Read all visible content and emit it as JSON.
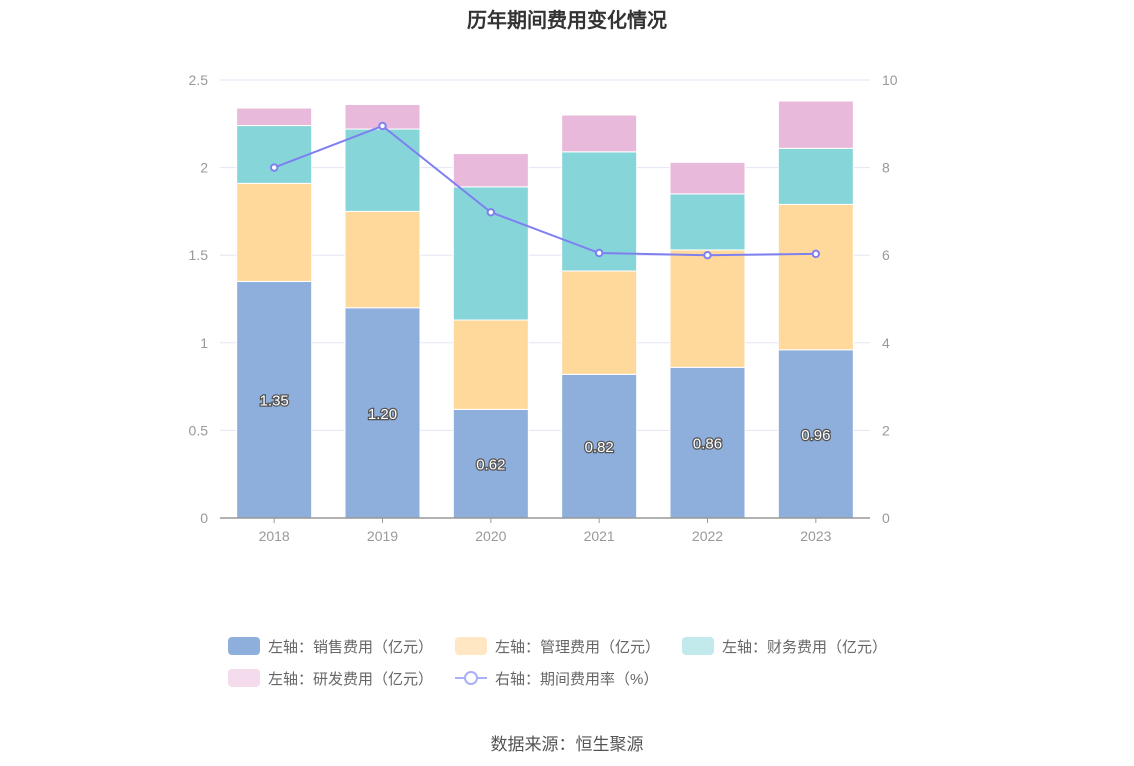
{
  "chart_data": {
    "type": "bar",
    "title": "历年期间费用变化情况",
    "categories": [
      "2018",
      "2019",
      "2020",
      "2021",
      "2022",
      "2023"
    ],
    "series": [
      {
        "name": "左轴：销售费用（亿元）",
        "values": [
          1.35,
          1.2,
          0.62,
          0.82,
          0.86,
          0.96
        ],
        "color": "#8eaedb",
        "labels": [
          "1.35",
          "1.20",
          "0.62",
          "0.82",
          "0.86",
          "0.96"
        ]
      },
      {
        "name": "左轴：管理费用（亿元）",
        "values": [
          0.56,
          0.55,
          0.51,
          0.59,
          0.67,
          0.83
        ],
        "color": "#ffd99c"
      },
      {
        "name": "左轴：财务费用（亿元）",
        "values": [
          0.33,
          0.47,
          0.76,
          0.68,
          0.32,
          0.32
        ],
        "color": "#86d5d9"
      },
      {
        "name": "左轴：研发费用（亿元）",
        "values": [
          0.1,
          0.14,
          0.19,
          0.21,
          0.18,
          0.27
        ],
        "color": "#e8b9db"
      }
    ],
    "line_series": {
      "name": "右轴：期间费用率（%）",
      "values": [
        8.0,
        8.95,
        6.98,
        6.05,
        6.0,
        6.03
      ],
      "color": "#7e80f0"
    },
    "left_axis": {
      "ylim": [
        0,
        2.5
      ],
      "ticks": [
        "0",
        "0.5",
        "1",
        "1.5",
        "2",
        "2.5"
      ]
    },
    "right_axis": {
      "ylim": [
        0,
        10
      ],
      "ticks": [
        "0",
        "2",
        "4",
        "6",
        "8",
        "10"
      ]
    },
    "grid": true,
    "legend_position": "bottom",
    "source_note": "数据来源：恒生聚源"
  }
}
